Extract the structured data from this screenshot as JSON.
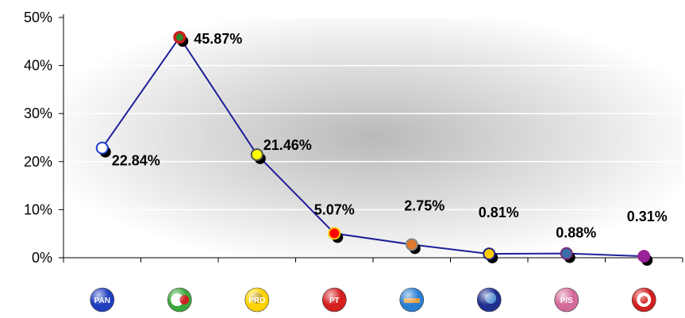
{
  "chart_data": {
    "type": "line",
    "title": "",
    "xlabel": "",
    "ylabel": "",
    "ylim": [
      0,
      50
    ],
    "y_ticks": [
      "0%",
      "10%",
      "20%",
      "30%",
      "40%",
      "50%"
    ],
    "grid": true,
    "legend": "none",
    "categories": [
      "PAN",
      "PRI-PVEM",
      "PRD",
      "PT",
      "PANAL",
      "Convergencia",
      "PSD",
      "PSN"
    ],
    "values": [
      22.84,
      45.87,
      21.46,
      5.07,
      2.75,
      0.81,
      0.88,
      0.31
    ],
    "labels": [
      "22.84%",
      "45.87%",
      "21.46%",
      "5.07%",
      "2.75%",
      "0.81%",
      "0.88%",
      "0.31%"
    ],
    "line_color": "#1f1f9a",
    "marker_colors": [
      "#ffffff",
      "#cc1f1f",
      "#ffff00",
      "#ff0000",
      "#e07a2a",
      "#ffcc00",
      "#3a6fa8",
      "#992299"
    ],
    "marker_inner_colors": [
      "#ffffff",
      "#2a8a2a",
      "#ffff00",
      "#ff0000",
      "#e07a2a",
      "#ffcc00",
      "#3a6fa8",
      "#992299"
    ],
    "marker_ring_colors": [
      "#1f3fcf",
      "#cc1f1f",
      "#555555",
      "#ffcc00",
      "#888888",
      "#222288",
      "#7a2a7a",
      "#992299"
    ],
    "logo_colors": [
      "#1f3fbf",
      "#3aa83a",
      "#ffd400",
      "#d41f1f",
      "#2a7fd4",
      "#1f2f8f",
      "#d46a9a",
      "#d41f1f"
    ]
  }
}
